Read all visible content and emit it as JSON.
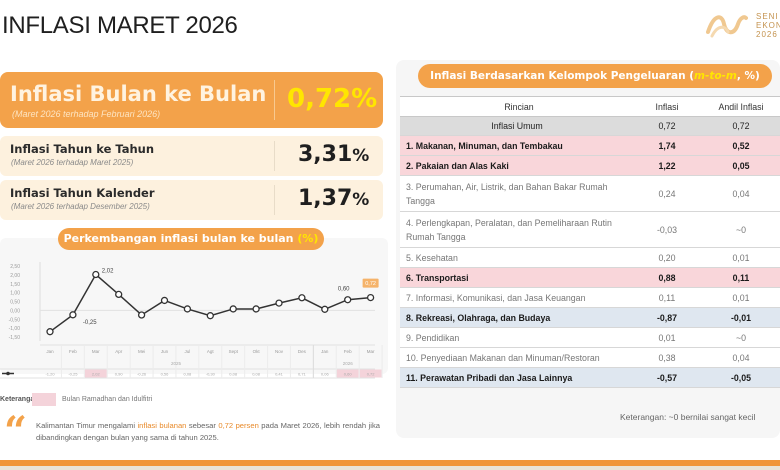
{
  "header": {
    "title": "INFLASI MARET 2026",
    "logo_text": [
      "SENI",
      "EKONO",
      "2026"
    ]
  },
  "mom": {
    "label": "Inflasi Bulan ke Bulan",
    "sub": "(Maret 2026 terhadap Februari 2026)",
    "value": "0,72%"
  },
  "yoy": {
    "label": "Inflasi Tahun ke Tahun",
    "sub": "(Maret 2026 terhadap Maret 2025)",
    "value": "3,31",
    "unit": "%"
  },
  "ytd": {
    "label": "Inflasi Tahun Kalender",
    "sub": "(Maret 2026 terhadap Desember 2025)",
    "value": "1,37",
    "unit": "%"
  },
  "chart_section": {
    "title_main": "Perkembangan inflasi bulan ke bulan ",
    "title_unit": "(%)"
  },
  "chart_data": {
    "type": "line",
    "title": "Perkembangan inflasi bulan ke bulan (%)",
    "xlabel": "",
    "ylabel": "",
    "x": [
      "Jan",
      "Feb",
      "Mar",
      "Apr",
      "Mei",
      "Jun",
      "Jul",
      "Agt",
      "Sept",
      "Okt",
      "Nov",
      "Des",
      "Jan",
      "Feb",
      "Mar"
    ],
    "year_groups": [
      {
        "label": "2025",
        "span": 12
      },
      {
        "label": "2026",
        "span": 3
      }
    ],
    "series": [
      {
        "name": "m-to-m",
        "values": [
          -1.2,
          -0.25,
          2.02,
          0.9,
          -0.26,
          0.56,
          0.08,
          -0.3,
          0.08,
          0.08,
          0.41,
          0.71,
          0.06,
          0.6,
          0.72
        ]
      }
    ],
    "data_labels": [
      {
        "index": 1,
        "text": "-0,25"
      },
      {
        "index": 2,
        "text": "2,02"
      },
      {
        "index": 13,
        "text": "0,60"
      },
      {
        "index": 14,
        "text": "0,72",
        "highlight": true
      }
    ],
    "yticks": [
      "2,50",
      "2,00",
      "1,50",
      "1,00",
      "0,50",
      "0,00",
      "-0,50",
      "-1,00",
      "-1,50"
    ],
    "ylim": [
      -1.5,
      2.5
    ],
    "highlighted_months": [
      2,
      13,
      14
    ],
    "highlight_color": "#f4d3da",
    "grid": false
  },
  "legend": {
    "label": "Keterangan:",
    "text": "Bulan Ramadhan dan Idulfitri"
  },
  "summary": {
    "pre": "Kalimantan Timur mengalami ",
    "hl1": "inflasi bulanan",
    "mid": " sebesar ",
    "hl2": "0,72 persen",
    "post": " pada Maret 2026, lebih rendah jika dibandingkan dengan bulan yang sama di tahun 2025."
  },
  "table": {
    "title_main": "Inflasi Berdasarkan Kelompok Pengeluaran (",
    "title_hl": "m-to-m",
    "title_end": ", %)",
    "headers": [
      "Rincian",
      "Inflasi",
      "Andil Inflasi"
    ],
    "general": {
      "name": "Inflasi Umum",
      "inflasi": "0,72",
      "andil": "0,72"
    },
    "rows": [
      {
        "name": "1.  Makanan, Minuman, dan Tembakau",
        "inflasi": "1,74",
        "andil": "0,52",
        "style": "pink"
      },
      {
        "name": "2.  Pakaian dan Alas Kaki",
        "inflasi": "1,22",
        "andil": "0,05",
        "style": "pink"
      },
      {
        "name": "3.  Perumahan, Air, Listrik, dan Bahan Bakar Rumah Tangga",
        "inflasi": "0,24",
        "andil": "0,04",
        "style": "tall"
      },
      {
        "name": "4.  Perlengkapan, Peralatan, dan Pemeliharaan Rutin Rumah Tangga",
        "inflasi": "-0,03",
        "andil": "~0",
        "style": "tall"
      },
      {
        "name": "5.  Kesehatan",
        "inflasi": "0,20",
        "andil": "0,01",
        "style": "normal"
      },
      {
        "name": "6.  Transportasi",
        "inflasi": "0,88",
        "andil": "0,11",
        "style": "pink"
      },
      {
        "name": "7.  Informasi, Komunikasi, dan Jasa Keuangan",
        "inflasi": "0,11",
        "andil": "0,01",
        "style": "normal"
      },
      {
        "name": "8.  Rekreasi, Olahraga, dan Budaya",
        "inflasi": "-0,87",
        "andil": "-0,01",
        "style": "blue"
      },
      {
        "name": "9.  Pendidikan",
        "inflasi": "0,01",
        "andil": "~0",
        "style": "normal"
      },
      {
        "name": "10. Penyediaan Makanan dan Minuman/Restoran",
        "inflasi": "0,38",
        "andil": "0,04",
        "style": "normal"
      },
      {
        "name": "11. Perawatan Pribadi dan Jasa Lainnya",
        "inflasi": "-0,57",
        "andil": "-0,05",
        "style": "blue"
      }
    ],
    "note": "Keterangan: ~0 bernilai sangat kecil"
  },
  "colors": {
    "accent_orange": "#f3a24a",
    "highlight_yellow": "#ffe600",
    "row_pink": "#f9d6da",
    "row_blue": "#dfe7f0"
  }
}
